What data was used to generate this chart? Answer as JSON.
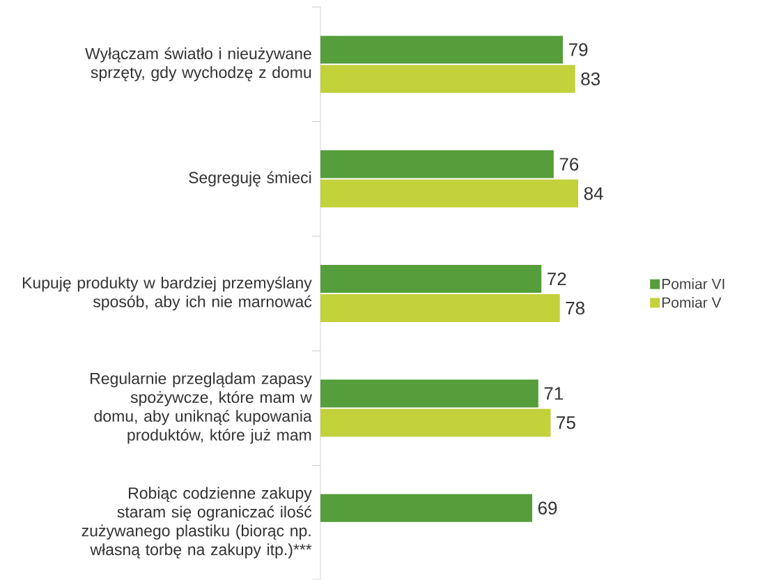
{
  "chart_data": {
    "type": "bar",
    "orientation": "horizontal",
    "categories": [
      "Wyłączam światło i nieużywane sprzęty,  gdy wychodzę z domu",
      "Segreguję śmieci",
      "Kupuję produkty w bardziej przemyślany sposób, aby ich nie marnować",
      "Regularnie przeglądam zapasy spożywcze, które mam w domu, aby uniknąć kupowania produktów, które już mam",
      "Robiąc codzienne zakupy staram się ograniczać ilość zużywanego plastiku (biorąc np. własną torbę na zakupy itp.)***"
    ],
    "series": [
      {
        "name": "Pomiar VI",
        "color": "#559e3b",
        "values": [
          79,
          76,
          72,
          71,
          69
        ]
      },
      {
        "name": "Pomiar V",
        "color": "#c3d13b",
        "values": [
          83,
          84,
          78,
          75,
          null
        ]
      }
    ],
    "data_labels": true,
    "legend": "right"
  }
}
